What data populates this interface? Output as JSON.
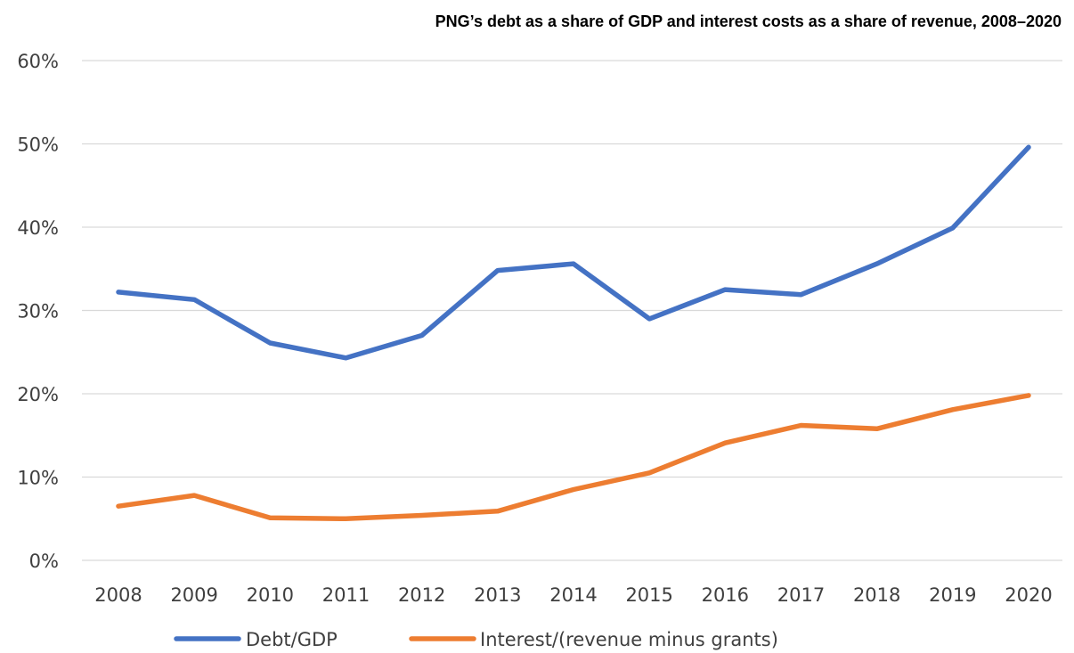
{
  "chart_data": {
    "type": "line",
    "title": "PNG’s debt as a share of GDP and interest costs as a share of revenue, 2008–2020",
    "xlabel": "",
    "ylabel": "",
    "categories": [
      "2008",
      "2009",
      "2010",
      "2011",
      "2012",
      "2013",
      "2014",
      "2015",
      "2016",
      "2017",
      "2018",
      "2019",
      "2020"
    ],
    "ylim": [
      0,
      60
    ],
    "yticks": [
      0,
      10,
      20,
      30,
      40,
      50,
      60
    ],
    "ytick_labels": [
      "0%",
      "10%",
      "20%",
      "30%",
      "40%",
      "50%",
      "60%"
    ],
    "grid": true,
    "legend_position": "bottom",
    "series": [
      {
        "name": "Debt/GDP",
        "color": "#4472c4",
        "values": [
          32.2,
          31.3,
          26.1,
          24.3,
          27.0,
          34.8,
          35.6,
          29.0,
          32.5,
          31.9,
          35.6,
          39.9,
          49.6
        ]
      },
      {
        "name": "Interest/(revenue minus grants)",
        "color": "#ed7d31",
        "values": [
          6.5,
          7.8,
          5.1,
          5.0,
          5.4,
          5.9,
          8.5,
          10.5,
          14.1,
          16.2,
          15.8,
          18.1,
          19.8
        ]
      }
    ]
  }
}
